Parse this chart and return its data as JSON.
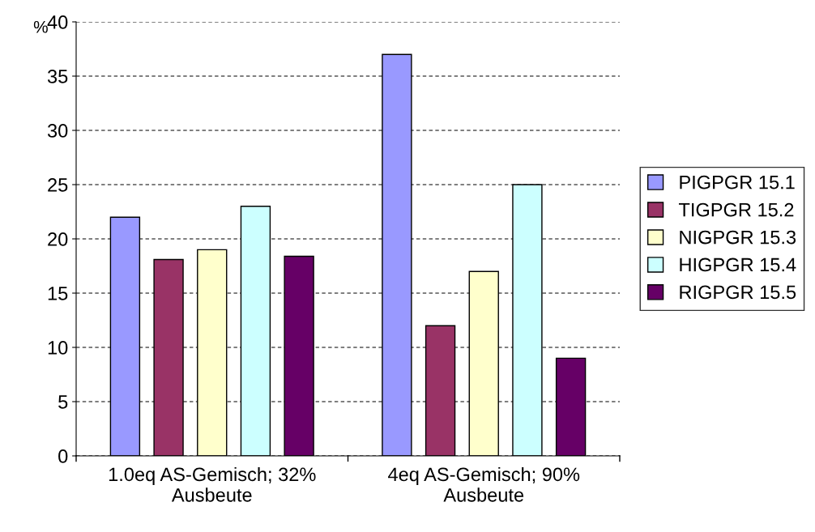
{
  "chart_data": {
    "type": "bar",
    "ylabel": "%",
    "categories": [
      "1.0eq AS-Gemisch; 32%\nAusbeute",
      "4eq AS-Gemisch; 90%\nAusbeute"
    ],
    "series": [
      {
        "name": "PIGPGR 15.1",
        "color": "#9999ff",
        "values": [
          22,
          37
        ]
      },
      {
        "name": "TIGPGR 15.2",
        "color": "#993366",
        "values": [
          18.1,
          12
        ]
      },
      {
        "name": "NIGPGR 15.3",
        "color": "#ffffcc",
        "values": [
          19,
          17
        ]
      },
      {
        "name": "HIGPGR 15.4",
        "color": "#ccffff",
        "values": [
          23,
          25
        ]
      },
      {
        "name": "RIGPGR 15.5",
        "color": "#660066",
        "values": [
          18.4,
          9
        ]
      }
    ],
    "ylim": [
      0,
      40
    ],
    "yticks": [
      0,
      5,
      10,
      15,
      20,
      25,
      30,
      35,
      40
    ],
    "grid": "y",
    "legend": "right"
  }
}
